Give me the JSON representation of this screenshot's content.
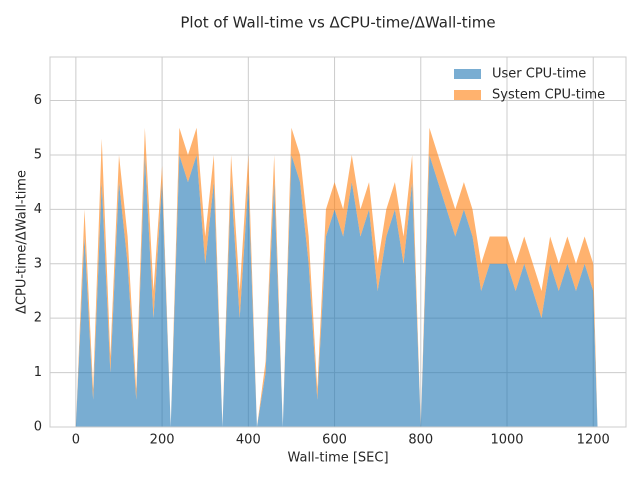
{
  "chart_data": {
    "type": "area",
    "title": "Plot of Wall-time vs ΔCPU-time/ΔWall-time",
    "x_label": "Wall-time [SEC]",
    "y_label": "ΔCPU-time/ΔWall-time",
    "x": [
      0,
      20,
      40,
      60,
      80,
      100,
      120,
      140,
      160,
      180,
      200,
      220,
      240,
      260,
      280,
      300,
      320,
      340,
      360,
      380,
      400,
      420,
      440,
      460,
      480,
      500,
      520,
      540,
      560,
      580,
      600,
      620,
      640,
      660,
      680,
      700,
      720,
      740,
      760,
      780,
      800,
      820,
      840,
      860,
      880,
      900,
      920,
      940,
      960,
      980,
      1000,
      1020,
      1040,
      1060,
      1080,
      1100,
      1120,
      1140,
      1160,
      1180,
      1200,
      1210
    ],
    "series": [
      {
        "name": "User CPU-time",
        "color": "#1f77b4",
        "values": [
          0,
          3.5,
          0.5,
          4.5,
          1,
          4.5,
          3,
          0.5,
          5,
          2,
          4.5,
          0,
          5,
          4.5,
          5,
          3,
          4.5,
          0,
          4.5,
          2,
          4.5,
          0,
          1,
          4.5,
          0,
          5,
          4.5,
          3,
          0.5,
          3.5,
          4,
          3.5,
          4.5,
          3.5,
          4,
          2.5,
          3.5,
          4,
          3,
          4.5,
          0,
          5,
          4.5,
          4,
          3.5,
          4,
          3.5,
          2.5,
          3,
          3,
          3,
          2.5,
          3,
          2.5,
          2,
          3,
          2.5,
          3,
          2.5,
          3,
          2.5,
          0
        ]
      },
      {
        "name": "System CPU-time",
        "color": "#ff7f0e",
        "values": [
          0,
          0.5,
          0.2,
          0.8,
          0.3,
          0.5,
          0.5,
          0.2,
          0.5,
          0.5,
          0.3,
          0,
          0.5,
          0.5,
          0.5,
          0.5,
          0.5,
          0,
          0.5,
          0.5,
          0.5,
          0,
          0.2,
          0.5,
          0,
          0.5,
          0.5,
          0.5,
          0.2,
          0.5,
          0.5,
          0.5,
          0.5,
          0.5,
          0.5,
          0.5,
          0.5,
          0.5,
          0.5,
          0.5,
          0,
          0.5,
          0.5,
          0.5,
          0.5,
          0.5,
          0.5,
          0.5,
          0.5,
          0.5,
          0.5,
          0.5,
          0.5,
          0.5,
          0.5,
          0.5,
          0.5,
          0.5,
          0.5,
          0.5,
          0.5,
          0
        ]
      }
    ],
    "xlim": [
      -60,
      1276
    ],
    "ylim": [
      0,
      6.8
    ],
    "xticks": [
      0,
      200,
      400,
      600,
      800,
      1000,
      1200
    ],
    "yticks": [
      0,
      1,
      2,
      3,
      4,
      5,
      6
    ],
    "grid": true,
    "legend": "upper right"
  }
}
